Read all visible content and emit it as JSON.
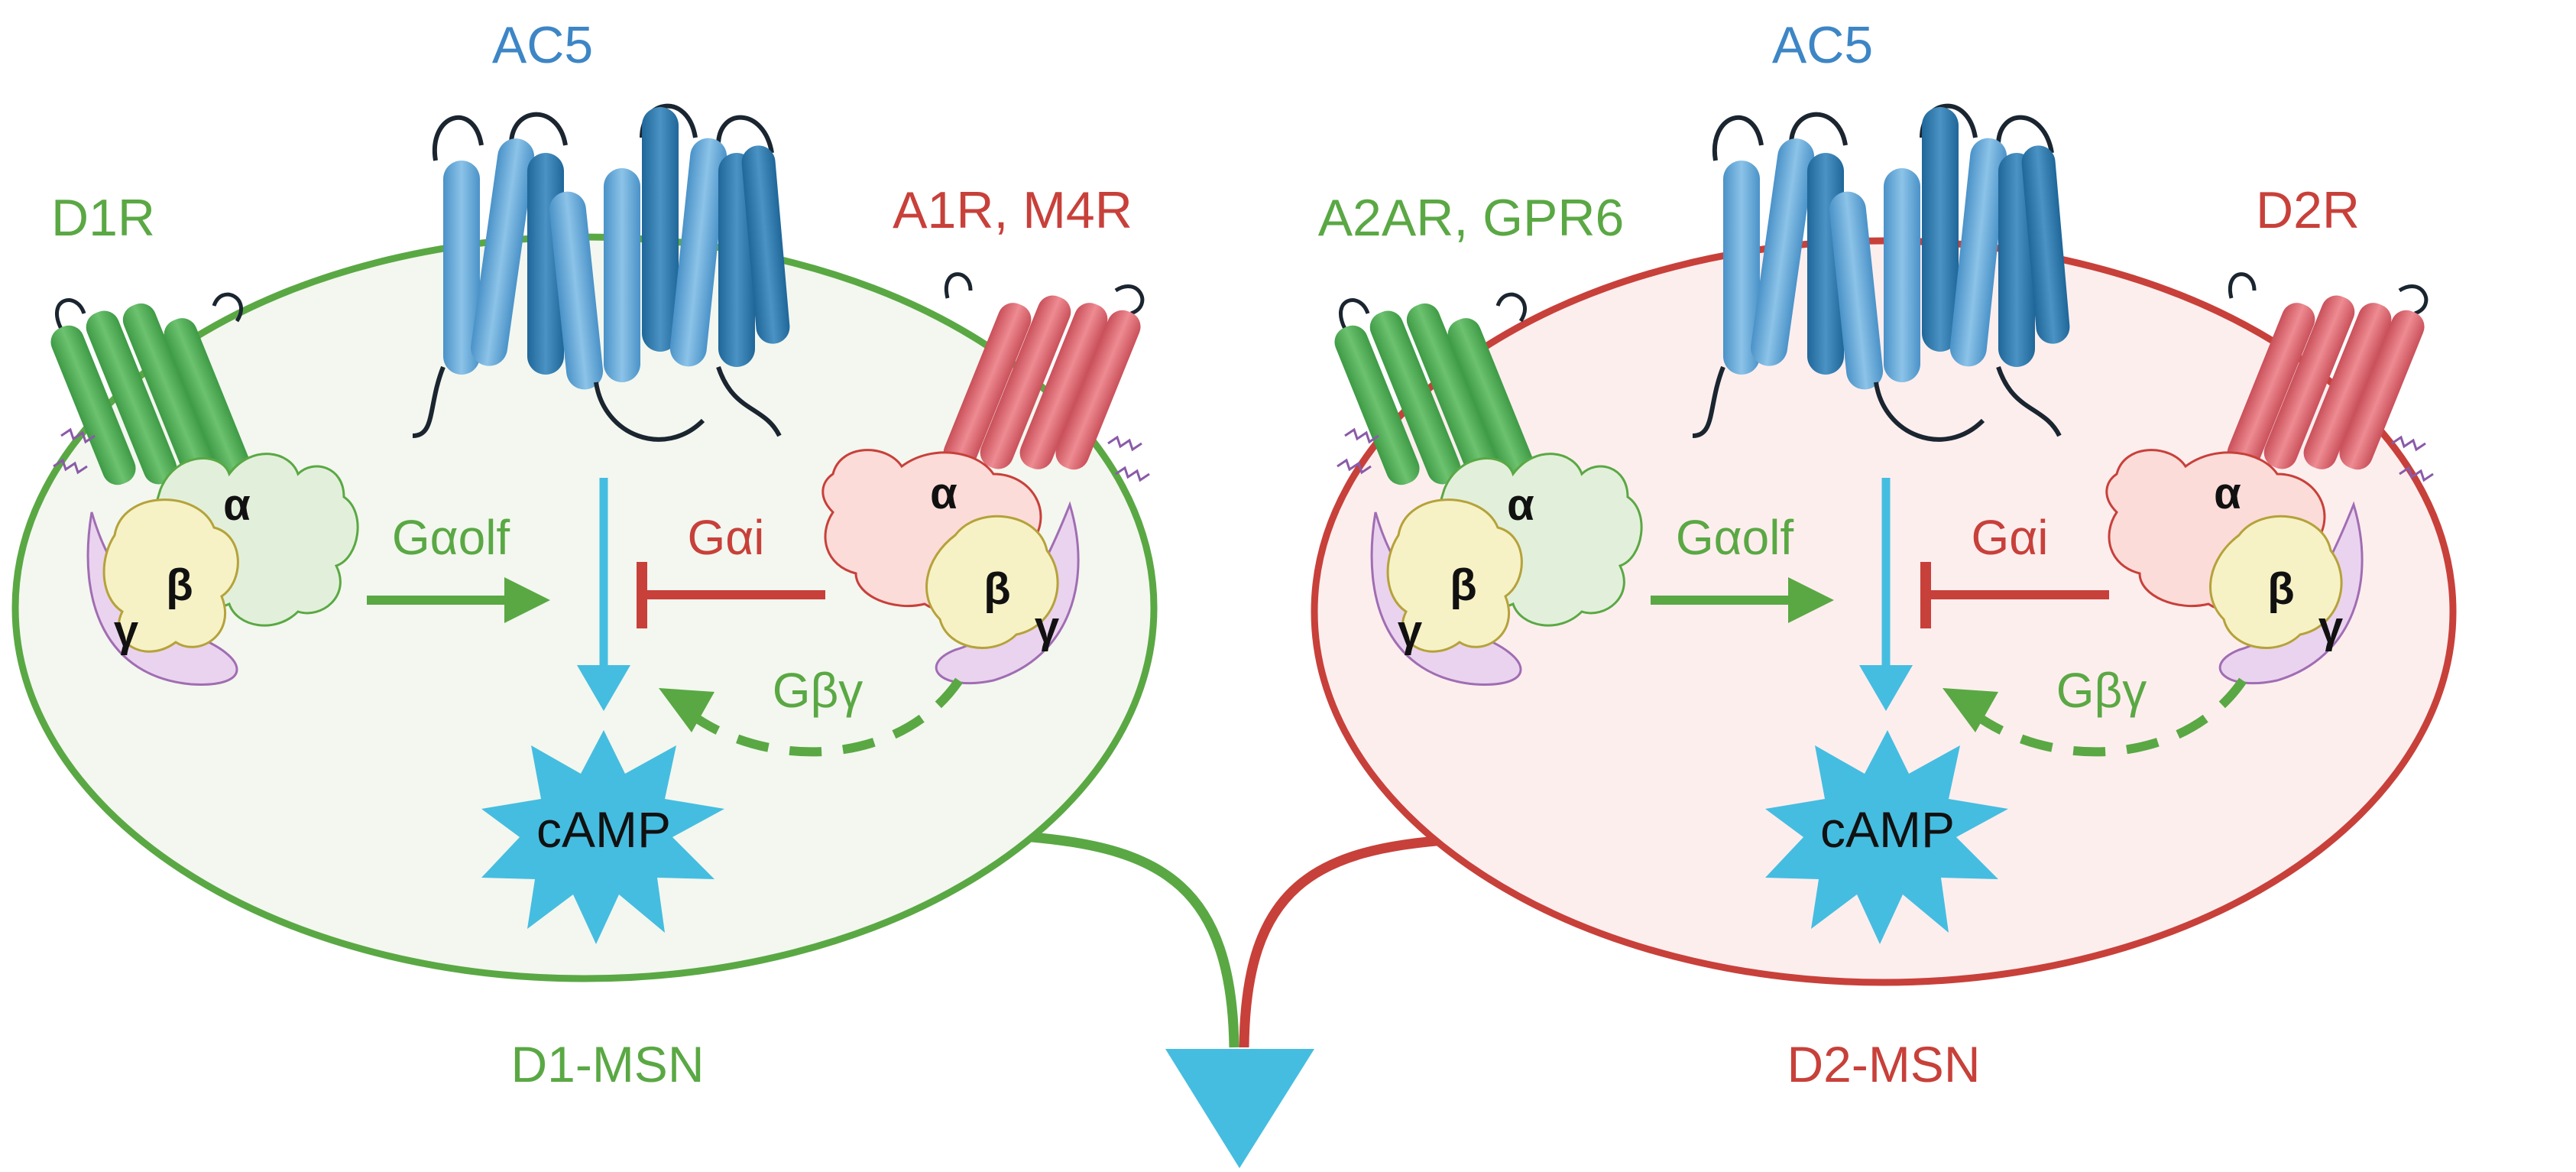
{
  "colors": {
    "green": "#5aa844",
    "green_fill": "#f3f7ef",
    "red": "#c8403a",
    "red_fill": "#fdeeee",
    "blue_label": "#3d86c6",
    "ac5_light": "#5fa3d4",
    "ac5_dark": "#2b76ab",
    "cyan": "#45bde0",
    "alpha_green": "#e2f0db",
    "alpha_red": "#fbdcd9",
    "beta_yellow": "#f6f2c6",
    "gamma_purple": "#ead3ee",
    "receptor_green": "#4aa84f",
    "receptor_red": "#d9616a"
  },
  "left_cell": {
    "ac5_label": "AC5",
    "stim_receptor_label": "D1R",
    "inhib_receptor_label": "A1R, M4R",
    "stim_g_label": "Gαolf",
    "inhib_g_label": "Gαi",
    "gbg_label": "Gβγ",
    "camp_label": "cAMP",
    "cell_label": "D1-MSN",
    "alpha_stim": "α",
    "beta_stim": "β",
    "gamma_stim": "γ",
    "alpha_inhib": "α",
    "beta_inhib": "β",
    "gamma_inhib": "γ"
  },
  "right_cell": {
    "ac5_label": "AC5",
    "stim_receptor_label": "A2AR, GPR6",
    "inhib_receptor_label": "D2R",
    "stim_g_label": "Gαolf",
    "inhib_g_label": "Gαi",
    "gbg_label": "Gβγ",
    "camp_label": "cAMP",
    "cell_label": "D2-MSN",
    "alpha_stim": "α",
    "beta_stim": "β",
    "gamma_stim": "γ",
    "alpha_inhib": "α",
    "beta_inhib": "β",
    "gamma_inhib": "γ"
  }
}
